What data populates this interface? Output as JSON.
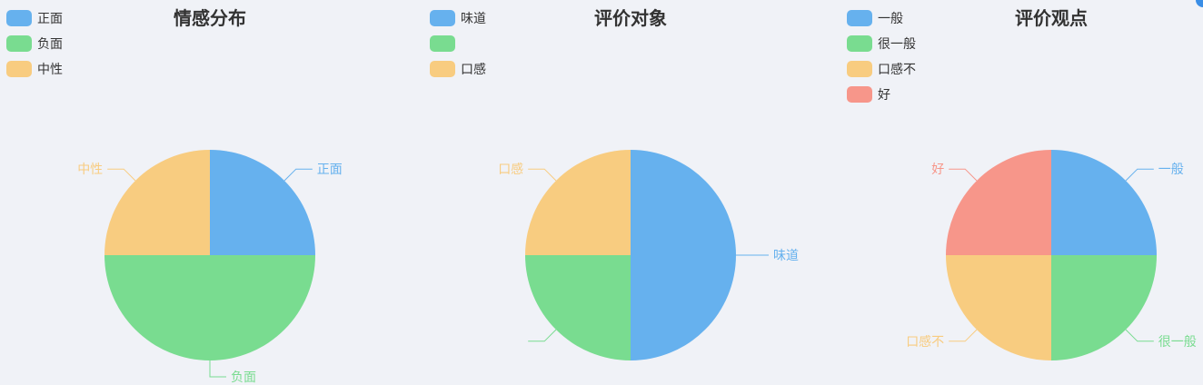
{
  "chart_data": [
    {
      "type": "pie",
      "title": "情感分布",
      "categories": [
        "正面",
        "负面",
        "中性"
      ],
      "values": [
        1,
        2,
        1
      ],
      "colors": [
        "#66b1ee",
        "#79dc90",
        "#f8cc80"
      ],
      "legend": "top-left",
      "pie_labels": [
        "正面",
        "负面",
        "中性"
      ]
    },
    {
      "type": "pie",
      "title": "评价对象",
      "categories": [
        "味道",
        "",
        "口感"
      ],
      "values": [
        2,
        1,
        1
      ],
      "colors": [
        "#66b1ee",
        "#79dc90",
        "#f8cc80"
      ],
      "legend": "top-left",
      "pie_labels": [
        "味道",
        "",
        "口感"
      ]
    },
    {
      "type": "pie",
      "title": "评价观点",
      "categories": [
        "一般",
        "很一般",
        "口感不",
        "好"
      ],
      "values": [
        1,
        1,
        1,
        1
      ],
      "colors": [
        "#66b1ee",
        "#79dc90",
        "#f8cc80",
        "#f7968a"
      ],
      "legend": "top-left",
      "pie_labels": [
        "一般",
        "很一般",
        "口感不",
        "好"
      ]
    }
  ]
}
